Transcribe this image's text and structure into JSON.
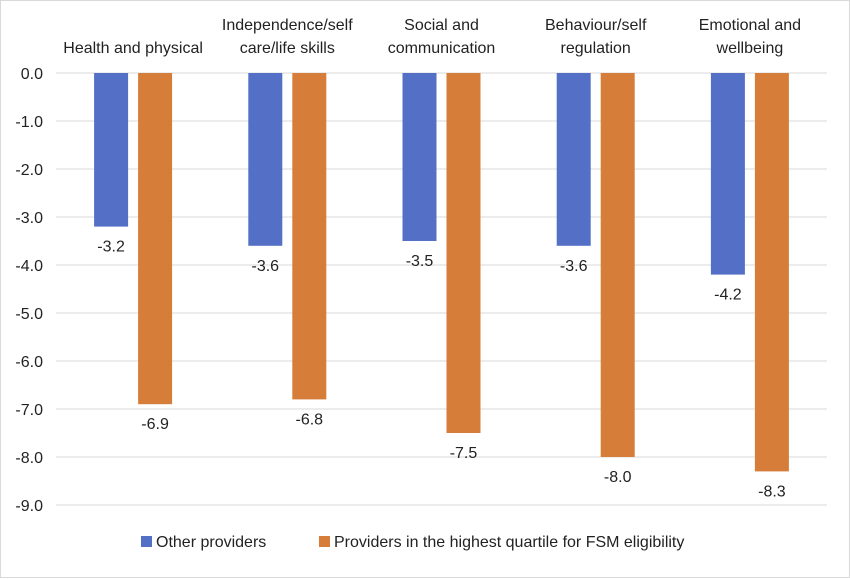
{
  "chart_data": {
    "type": "bar",
    "categories": [
      [
        "Health and physical"
      ],
      [
        "Independence/self",
        "care/life skills"
      ],
      [
        "Social and",
        "communication"
      ],
      [
        "Behaviour/self",
        "regulation"
      ],
      [
        "Emotional and",
        "wellbeing"
      ]
    ],
    "series": [
      {
        "name": "Other providers",
        "color": "#5470c6",
        "values": [
          -3.2,
          -3.6,
          -3.5,
          -3.6,
          -4.2
        ]
      },
      {
        "name": "Providers in the highest quartile for FSM eligibility",
        "color": "#d67d3a",
        "values": [
          -6.9,
          -6.8,
          -7.5,
          -8.0,
          -8.3
        ]
      }
    ],
    "data_labels": [
      [
        "-3.2",
        "-3.6",
        "-3.5",
        "-3.6",
        "-4.2"
      ],
      [
        "-6.9",
        "-6.8",
        "-7.5",
        "-8.0",
        "-8.3"
      ]
    ],
    "y_ticks": [
      "0.0",
      "-1.0",
      "-2.0",
      "-3.0",
      "-4.0",
      "-5.0",
      "-6.0",
      "-7.0",
      "-8.0",
      "-9.0"
    ],
    "ylim": [
      -9,
      0
    ],
    "title": "",
    "xlabel": "",
    "ylabel": "",
    "category_axis_position": "top",
    "grid": true,
    "legend_position": "bottom"
  }
}
